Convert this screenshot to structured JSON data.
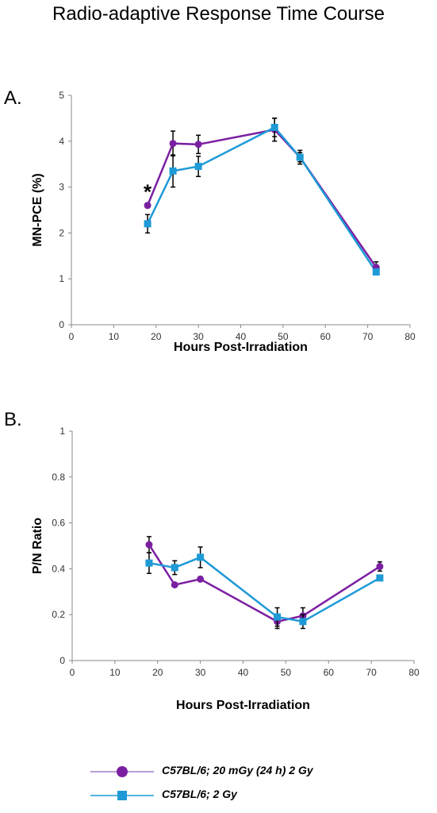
{
  "title": "Radio-adaptive Response Time Course",
  "colors": {
    "purple": "#7b1fa2",
    "blue": "#1e9ad6",
    "error": "#000000",
    "axis": "#888888"
  },
  "chart_data": [
    {
      "panel": "A.",
      "type": "line",
      "xlabel": "Hours Post-Irradiation",
      "ylabel": "MN-PCE (%)",
      "xlim": [
        0,
        80
      ],
      "ylim": [
        0,
        5
      ],
      "xticks": [
        0,
        10,
        20,
        30,
        40,
        50,
        60,
        70,
        80
      ],
      "yticks": [
        0,
        1,
        2,
        3,
        4,
        5
      ],
      "annotation": {
        "text": "*",
        "x": 18,
        "y": 2.6
      },
      "series": [
        {
          "name": "C57BL/6; 20 mGy (24 h) 2 Gy",
          "marker": "circle",
          "color": "#7b1fa2",
          "x": [
            18,
            24,
            30,
            48,
            54,
            72
          ],
          "y": [
            2.6,
            3.95,
            3.93,
            4.25,
            3.65,
            1.25
          ],
          "err": [
            0.05,
            0.27,
            0.2,
            0.25,
            0.15,
            0.12
          ]
        },
        {
          "name": "C57BL/6; 2 Gy",
          "marker": "square",
          "color": "#1e9ad6",
          "x": [
            18,
            24,
            30,
            48,
            54,
            72
          ],
          "y": [
            2.2,
            3.35,
            3.45,
            4.3,
            3.65,
            1.15
          ],
          "err": [
            0.2,
            0.35,
            0.22,
            0.2,
            0.1,
            0.05
          ]
        }
      ]
    },
    {
      "panel": "B.",
      "type": "line",
      "xlabel": "Hours Post-Irradiation",
      "ylabel": "P/N Ratio",
      "xlim": [
        0,
        80
      ],
      "ylim": [
        0,
        1
      ],
      "xticks": [
        0,
        10,
        20,
        30,
        40,
        50,
        60,
        70,
        80
      ],
      "yticks": [
        0,
        0.2,
        0.4,
        0.6,
        0.8,
        1
      ],
      "series": [
        {
          "name": "C57BL/6; 20 mGy (24 h) 2 Gy",
          "marker": "circle",
          "color": "#7b1fa2",
          "x": [
            18,
            24,
            30,
            48,
            54,
            72
          ],
          "y": [
            0.505,
            0.33,
            0.355,
            0.17,
            0.195,
            0.41
          ],
          "err": [
            0.035,
            0.0,
            0.0,
            0.03,
            0.035,
            0.02
          ]
        },
        {
          "name": "C57BL/6; 2 Gy",
          "marker": "square",
          "color": "#1e9ad6",
          "x": [
            18,
            24,
            30,
            48,
            54,
            72
          ],
          "y": [
            0.425,
            0.405,
            0.45,
            0.19,
            0.17,
            0.36
          ],
          "err": [
            0.045,
            0.03,
            0.045,
            0.04,
            0.03,
            0.01
          ]
        }
      ]
    }
  ],
  "legend": [
    {
      "label": "C57BL/6; 20 mGy (24 h) 2 Gy",
      "marker": "circle",
      "color": "#7b1fa2",
      "line_color": "#9c7fc8"
    },
    {
      "label": "C57BL/6; 2 Gy",
      "marker": "square",
      "color": "#1e9ad6",
      "line_color": "#1e9ad6"
    }
  ]
}
